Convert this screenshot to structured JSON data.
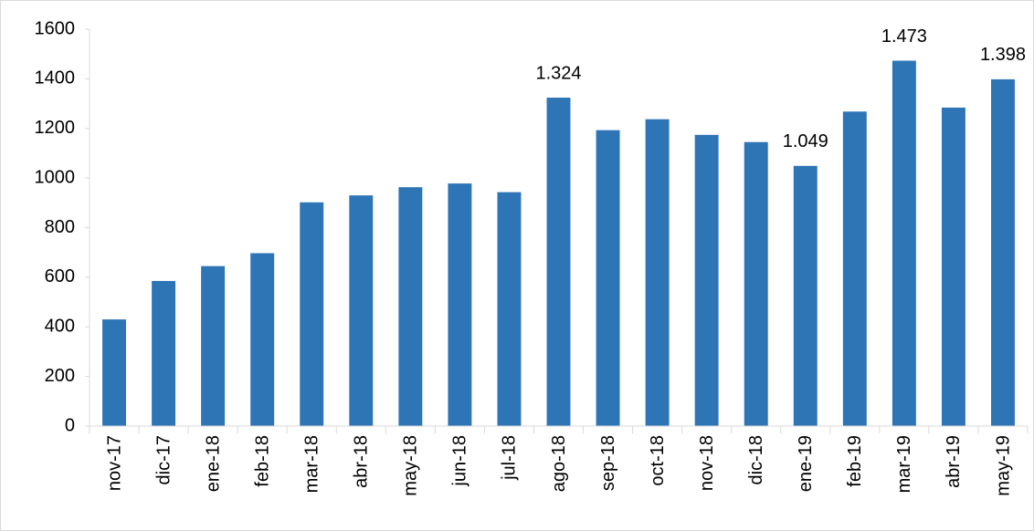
{
  "chart_data": {
    "type": "bar",
    "categories": [
      "nov-17",
      "dic-17",
      "ene-18",
      "feb-18",
      "mar-18",
      "abr-18",
      "may-18",
      "jun-18",
      "jul-18",
      "ago-18",
      "sep-18",
      "oct-18",
      "nov-18",
      "dic-18",
      "ene-19",
      "feb-19",
      "mar-19",
      "abr-19",
      "may-19"
    ],
    "values": [
      430,
      585,
      645,
      697,
      902,
      930,
      963,
      978,
      943,
      1324,
      1193,
      1237,
      1174,
      1145,
      1049,
      1268,
      1473,
      1284,
      1398
    ],
    "value_labels": [
      null,
      null,
      null,
      null,
      null,
      null,
      null,
      null,
      null,
      "1.324",
      null,
      null,
      null,
      null,
      "1.049",
      null,
      "1.473",
      null,
      "1.398"
    ],
    "color": "#2e75b6",
    "ylim": [
      0,
      1600
    ],
    "yticks": [
      0,
      200,
      400,
      600,
      800,
      1000,
      1200,
      1400,
      1600
    ],
    "grid": false
  }
}
